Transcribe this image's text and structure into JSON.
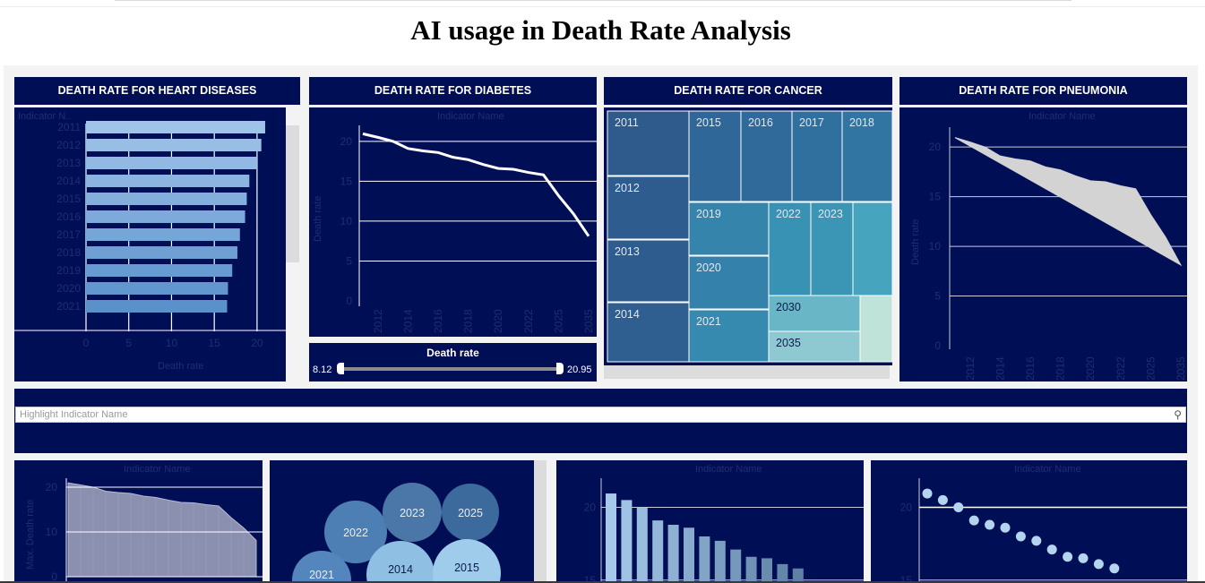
{
  "title": "AI usage in Death Rate Analysis",
  "panels": {
    "heart": "DEATH RATE FOR HEART DISEASES",
    "diabetes": "DEATH RATE FOR DIABETES",
    "cancer": "DEATH RATE FOR CANCER",
    "pneumonia": "DEATH RATE FOR PNEUMONIA"
  },
  "labels": {
    "indicator_name": "Indicator Name",
    "indicator_short": "Indicator N..",
    "death_rate": "Death rate",
    "max_death_rate": "Max. Death rate"
  },
  "slider": {
    "title": "Death rate",
    "min": "8.12",
    "max": "20.95"
  },
  "search": {
    "placeholder": "Highlight Indicator Name"
  },
  "colors": {
    "panel_bg": "#000f55",
    "bar_light": "#9ec7ea",
    "bar_mid": "#5c88be",
    "area": "#d3d3d3"
  },
  "chart_data": [
    {
      "type": "bar",
      "orientation": "horizontal",
      "categories": [
        "2011",
        "2012",
        "2013",
        "2014",
        "2015",
        "2016",
        "2017",
        "2018",
        "2019",
        "2020",
        "2021"
      ],
      "values": [
        20.95,
        20.5,
        20.0,
        19.1,
        18.8,
        18.6,
        18.0,
        17.7,
        17.1,
        16.6,
        16.5
      ],
      "xlabel": "Death rate",
      "xticks": [
        0,
        5,
        10,
        15,
        20
      ],
      "xlim": [
        0,
        22
      ]
    },
    {
      "type": "line",
      "x": [
        "2011",
        "2012",
        "2013",
        "2014",
        "2015",
        "2016",
        "2017",
        "2018",
        "2019",
        "2020",
        "2021",
        "2022",
        "2023",
        "2025",
        "2030",
        "2035"
      ],
      "xticks": [
        "2012",
        "2014",
        "2016",
        "2018",
        "2020",
        "2022",
        "2025",
        "2035"
      ],
      "values": [
        20.95,
        20.5,
        20.0,
        19.1,
        18.8,
        18.6,
        18.0,
        17.7,
        17.1,
        16.6,
        16.5,
        16.1,
        15.8,
        13.2,
        10.9,
        8.12
      ],
      "ylabel": "Death rate",
      "yticks": [
        0,
        5,
        10,
        15,
        20
      ],
      "ylim": [
        0,
        22
      ]
    },
    {
      "type": "treemap",
      "categories": [
        "2011",
        "2012",
        "2013",
        "2014",
        "2015",
        "2016",
        "2017",
        "2018",
        "2019",
        "2020",
        "2021",
        "2022",
        "2023",
        "2030",
        "2035"
      ]
    },
    {
      "type": "area",
      "x": [
        "2011",
        "2012",
        "2013",
        "2014",
        "2015",
        "2016",
        "2017",
        "2018",
        "2019",
        "2020",
        "2021",
        "2022",
        "2023",
        "2025",
        "2030",
        "2035"
      ],
      "xticks": [
        "2012",
        "2014",
        "2016",
        "2018",
        "2020",
        "2022",
        "2025",
        "2035"
      ],
      "upper": [
        20.95,
        20.5,
        20.0,
        19.1,
        18.8,
        18.6,
        18.0,
        17.7,
        17.1,
        16.6,
        16.5,
        16.1,
        15.8,
        13.2,
        10.9,
        8.12
      ],
      "ylabel": "Death rate",
      "yticks": [
        0,
        5,
        10,
        15,
        20
      ],
      "ylim": [
        0,
        22
      ]
    },
    {
      "type": "area",
      "values": [
        20.95,
        20.5,
        20.0,
        19.1,
        18.8,
        18.6,
        18.0,
        17.7,
        17.1,
        16.6,
        16.5,
        16.1,
        15.8,
        13.2,
        10.9,
        8.12
      ],
      "ylabel": "Max. Death rate",
      "yticks": [
        0,
        10,
        20
      ],
      "ylim": [
        0,
        22
      ]
    },
    {
      "type": "bubble",
      "labels": [
        "2022",
        "2023",
        "2025",
        "2021",
        "2014",
        "2015"
      ]
    },
    {
      "type": "bar",
      "values": [
        20.95,
        20.5,
        20.0,
        19.1,
        18.8,
        18.6,
        18.0,
        17.7,
        17.1,
        16.6,
        16.5,
        16.1,
        15.8,
        14.4
      ],
      "yticks": [
        15,
        20
      ],
      "ylim": [
        14,
        22
      ]
    },
    {
      "type": "scatter",
      "values": [
        20.95,
        20.5,
        20.0,
        19.1,
        18.8,
        18.6,
        18.0,
        17.7,
        17.1,
        16.6,
        16.5,
        16.1,
        15.8,
        14.4
      ],
      "yticks": [
        15,
        20
      ],
      "ylim": [
        14,
        22
      ]
    }
  ]
}
